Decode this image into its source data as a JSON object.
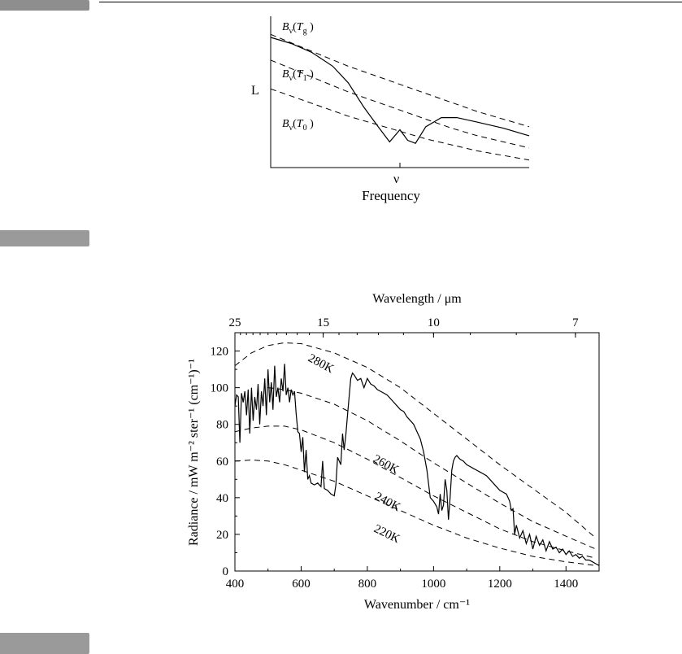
{
  "chart_data": [
    {
      "type": "line",
      "xlabel": "Frequency",
      "ylabel": "Lν",
      "x_ticks": [
        "ν0"
      ],
      "curve_labels": {
        "g": {
          "base": "B",
          "sub": "ν",
          "arg": "T",
          "argsub": "g"
        },
        "one": {
          "base": "B",
          "sub": "ν",
          "arg": "T",
          "argsub": "1"
        },
        "zero": {
          "base": "B",
          "sub": "ν",
          "arg": "T",
          "argsub": "0"
        }
      },
      "series": [
        {
          "name": "Bν(Tg)",
          "style": "dashed",
          "x": [
            0,
            0.1,
            0.2,
            0.3,
            0.4,
            0.5,
            0.6,
            0.7,
            0.8,
            0.9,
            1.0
          ],
          "y": [
            0.88,
            0.81,
            0.74,
            0.67,
            0.61,
            0.55,
            0.49,
            0.43,
            0.37,
            0.32,
            0.27
          ]
        },
        {
          "name": "Bν(T1)",
          "style": "dashed",
          "x": [
            0,
            0.1,
            0.2,
            0.3,
            0.4,
            0.5,
            0.6,
            0.7,
            0.8,
            0.9,
            1.0
          ],
          "y": [
            0.71,
            0.64,
            0.57,
            0.5,
            0.44,
            0.38,
            0.32,
            0.26,
            0.21,
            0.17,
            0.13
          ]
        },
        {
          "name": "Bν(T0)",
          "style": "dashed",
          "x": [
            0,
            0.1,
            0.2,
            0.3,
            0.4,
            0.5,
            0.6,
            0.7,
            0.8,
            0.9,
            1.0
          ],
          "y": [
            0.52,
            0.46,
            0.4,
            0.34,
            0.29,
            0.24,
            0.19,
            0.15,
            0.11,
            0.08,
            0.05
          ]
        },
        {
          "name": "",
          "style": "solid",
          "x": [
            0,
            0.08,
            0.16,
            0.24,
            0.3,
            0.36,
            0.42,
            0.46,
            0.5,
            0.53,
            0.56,
            0.6,
            0.66,
            0.72,
            0.8,
            0.9,
            1.0
          ],
          "y": [
            0.86,
            0.82,
            0.76,
            0.67,
            0.56,
            0.4,
            0.26,
            0.17,
            0.25,
            0.18,
            0.16,
            0.27,
            0.33,
            0.33,
            0.3,
            0.26,
            0.21
          ]
        }
      ]
    },
    {
      "type": "line",
      "xlabel": "Wavenumber / cm⁻¹",
      "ylabel": "Radiance / mW m⁻² ster⁻¹ (cm⁻¹)⁻¹",
      "x2label": "Wavelength / μm",
      "xlim": [
        400,
        1500
      ],
      "ylim": [
        0,
        130
      ],
      "x_ticks": [
        400,
        600,
        800,
        1000,
        1200,
        1400
      ],
      "y_ticks": [
        0,
        20,
        40,
        60,
        80,
        100,
        120
      ],
      "x2_ticks": [
        25,
        15,
        10,
        7
      ],
      "x2_tick_labels": [
        "25",
        "15",
        "10",
        "7"
      ],
      "series": [
        {
          "name": "280K",
          "style": "dashed",
          "x": [
            400,
            450,
            500,
            550,
            600,
            700,
            800,
            900,
            1000,
            1100,
            1200,
            1300,
            1400,
            1490
          ],
          "y": [
            112,
            119,
            123,
            124.5,
            124,
            119,
            111,
            100,
            86,
            72,
            58,
            45,
            32,
            18
          ]
        },
        {
          "name": "260K",
          "style": "dashed",
          "x": [
            500,
            550,
            600,
            700,
            800,
            900,
            1000,
            1100,
            1200,
            1300,
            1400,
            1490
          ],
          "y": [
            100,
            99,
            97,
            91,
            82,
            71,
            59,
            48,
            37,
            27,
            19,
            12
          ]
        },
        {
          "name": "240K",
          "style": "dashed",
          "x": [
            400,
            450,
            500,
            550,
            600,
            700,
            800,
            900,
            1000,
            1100,
            1200,
            1300,
            1400,
            1490
          ],
          "y": [
            76,
            78,
            79,
            79,
            77,
            70,
            61,
            51,
            41,
            32,
            23,
            16,
            11,
            7
          ]
        },
        {
          "name": "220K",
          "style": "dashed",
          "x": [
            400,
            450,
            500,
            550,
            600,
            700,
            800,
            900,
            1000,
            1100,
            1200,
            1300,
            1400,
            1490
          ],
          "y": [
            60,
            60.5,
            60,
            58,
            55,
            49,
            41,
            33,
            25,
            18,
            12.5,
            8,
            5,
            3
          ]
        },
        {
          "name": "",
          "style": "solid",
          "x": [
            400,
            405,
            410,
            415,
            420,
            425,
            430,
            435,
            440,
            445,
            450,
            455,
            460,
            465,
            470,
            475,
            480,
            485,
            490,
            495,
            500,
            505,
            510,
            515,
            520,
            525,
            530,
            535,
            540,
            545,
            550,
            555,
            560,
            565,
            570,
            575,
            580,
            585,
            590,
            595,
            600,
            605,
            610,
            615,
            620,
            625,
            630,
            640,
            650,
            660,
            665,
            670,
            680,
            690,
            700,
            705,
            710,
            715,
            720,
            725,
            730,
            735,
            740,
            745,
            750,
            755,
            760,
            770,
            780,
            790,
            800,
            810,
            820,
            830,
            840,
            850,
            860,
            870,
            880,
            890,
            900,
            910,
            920,
            930,
            940,
            950,
            960,
            970,
            980,
            990,
            1000,
            1010,
            1015,
            1020,
            1025,
            1030,
            1035,
            1040,
            1045,
            1050,
            1055,
            1060,
            1065,
            1070,
            1075,
            1080,
            1090,
            1100,
            1110,
            1120,
            1130,
            1140,
            1150,
            1160,
            1170,
            1180,
            1190,
            1200,
            1210,
            1220,
            1225,
            1230,
            1235,
            1240,
            1245,
            1250,
            1260,
            1270,
            1280,
            1290,
            1300,
            1310,
            1320,
            1330,
            1340,
            1350,
            1360,
            1370,
            1380,
            1390,
            1400,
            1410,
            1420,
            1430,
            1440,
            1450,
            1460,
            1470,
            1480,
            1490,
            1500
          ],
          "y": [
            90,
            96,
            95,
            70,
            97,
            92,
            98,
            85,
            99,
            75,
            100,
            82,
            95,
            88,
            102,
            80,
            98,
            90,
            105,
            85,
            110,
            92,
            103,
            88,
            112,
            95,
            100,
            92,
            105,
            98,
            113,
            96,
            100,
            92,
            99,
            96,
            98,
            86,
            76,
            75,
            65,
            73,
            54,
            66,
            50,
            52,
            48,
            47,
            48,
            46,
            60,
            45,
            44,
            42,
            41,
            47,
            62,
            60,
            58,
            75,
            66,
            74,
            85,
            95,
            105,
            108,
            107,
            104,
            105,
            100,
            105,
            102,
            101,
            99,
            98,
            97,
            96,
            94,
            92,
            90,
            88,
            87,
            84,
            82,
            80,
            76,
            72,
            65,
            55,
            40,
            38,
            35,
            31,
            42,
            33,
            36,
            50,
            44,
            28,
            40,
            55,
            60,
            62,
            63,
            62,
            61,
            60,
            58,
            57,
            56,
            55,
            54,
            53,
            52,
            50,
            48,
            46,
            44,
            43,
            42,
            40,
            38,
            33,
            34,
            20,
            25,
            18,
            22,
            15,
            20,
            12,
            19,
            14,
            17,
            11,
            16,
            12,
            13,
            10,
            12,
            9,
            11,
            8,
            9,
            7,
            8,
            6,
            6,
            5,
            4,
            3
          ]
        }
      ]
    }
  ]
}
